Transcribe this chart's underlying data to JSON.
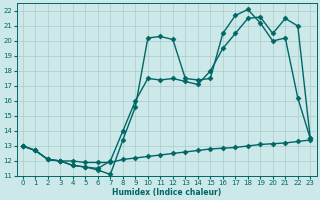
{
  "xlabel": "Humidex (Indice chaleur)",
  "x_ticks": [
    0,
    1,
    2,
    3,
    4,
    5,
    6,
    7,
    8,
    9,
    10,
    11,
    12,
    13,
    14,
    15,
    16,
    17,
    18,
    19,
    20,
    21,
    22,
    23
  ],
  "xlim": [
    -0.5,
    23.5
  ],
  "ylim": [
    11,
    22.5
  ],
  "y_ticks": [
    11,
    12,
    13,
    14,
    15,
    16,
    17,
    18,
    19,
    20,
    21,
    22
  ],
  "bg_color": "#cce8e8",
  "grid_color": "#aacccc",
  "line_color": "#006666",
  "line1_x": [
    0,
    1,
    2,
    3,
    4,
    5,
    6,
    7,
    8,
    9,
    10,
    11,
    12,
    13,
    14,
    15,
    16,
    17,
    18,
    19,
    20,
    21,
    22,
    23
  ],
  "line1_y": [
    13.0,
    12.7,
    12.1,
    12.0,
    12.0,
    11.9,
    11.9,
    11.9,
    12.1,
    12.2,
    12.3,
    12.4,
    12.5,
    12.6,
    12.7,
    12.8,
    12.85,
    12.9,
    13.0,
    13.1,
    13.15,
    13.2,
    13.3,
    13.4
  ],
  "line2_x": [
    0,
    1,
    2,
    3,
    4,
    5,
    6,
    7,
    8,
    9,
    10,
    11,
    12,
    13,
    14,
    15,
    16,
    17,
    18,
    19,
    20,
    21,
    22,
    23
  ],
  "line2_y": [
    13.0,
    12.7,
    12.1,
    12.0,
    11.7,
    11.6,
    11.4,
    11.1,
    13.4,
    15.6,
    20.2,
    20.3,
    20.1,
    17.5,
    17.4,
    17.5,
    20.5,
    21.7,
    22.1,
    21.2,
    20.0,
    20.2,
    16.2,
    13.5
  ],
  "line3_x": [
    0,
    1,
    2,
    3,
    4,
    5,
    6,
    7,
    8,
    9,
    10,
    11,
    12,
    13,
    14,
    15,
    16,
    17,
    18,
    19,
    20,
    21,
    22,
    23
  ],
  "line3_y": [
    13.0,
    12.7,
    12.1,
    12.0,
    11.7,
    11.6,
    11.5,
    12.0,
    14.0,
    16.0,
    17.5,
    17.4,
    17.5,
    17.3,
    17.1,
    18.0,
    19.5,
    20.5,
    21.5,
    21.6,
    20.5,
    21.5,
    21.0,
    13.5
  ],
  "marker": "D",
  "markersize": 2.5,
  "linewidth": 1.0
}
